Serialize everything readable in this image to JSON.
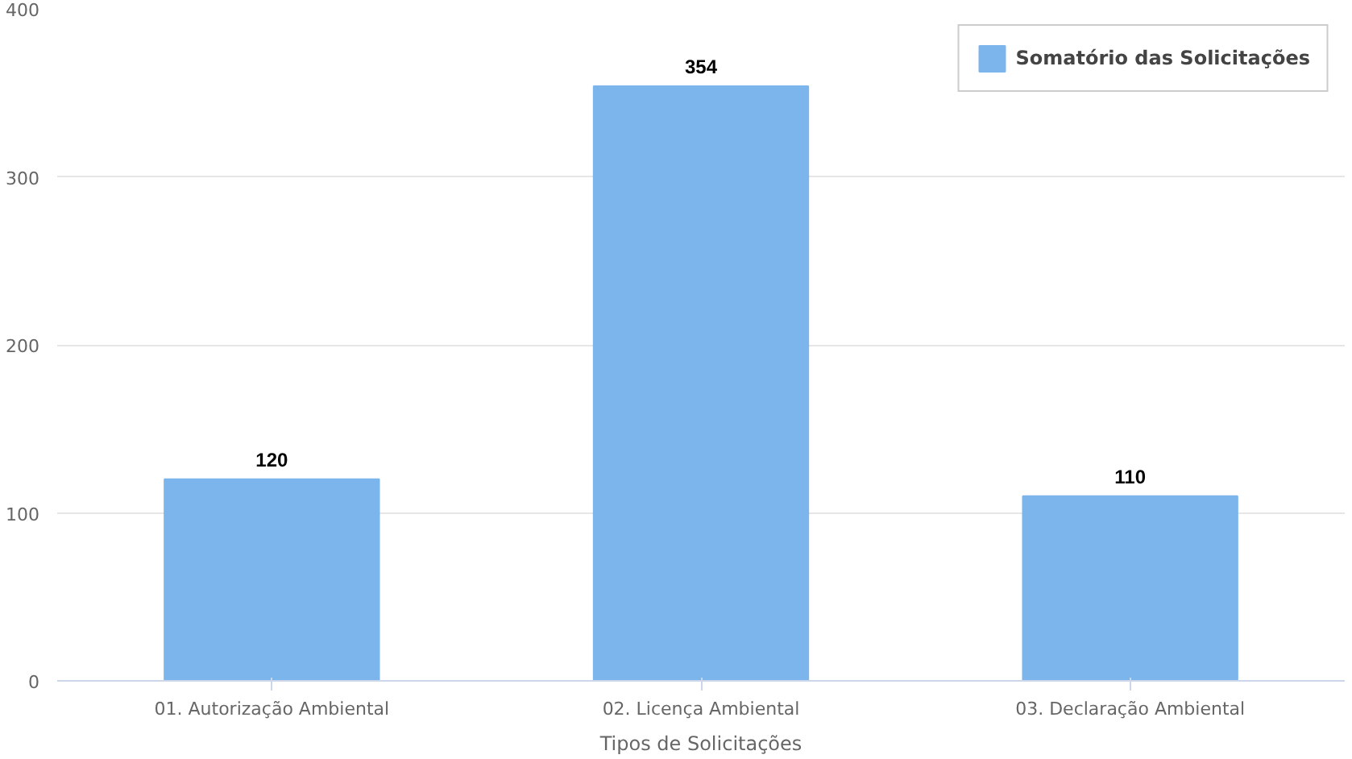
{
  "chart_data": {
    "type": "bar",
    "xlabel": "Tipos de Solicitações",
    "categories": [
      "01. Autorização Ambiental",
      "02. Licença Ambiental",
      "03. Declaração Ambiental"
    ],
    "series": [
      {
        "name": "Somatório das Solicitações",
        "color": "#7cb5ec",
        "values": [
          120,
          354,
          110
        ]
      }
    ],
    "ylim": [
      0,
      400
    ],
    "yticks": [
      0,
      100,
      200,
      300,
      400
    ],
    "grid": "y",
    "legend": "top right",
    "data_labels": true
  }
}
